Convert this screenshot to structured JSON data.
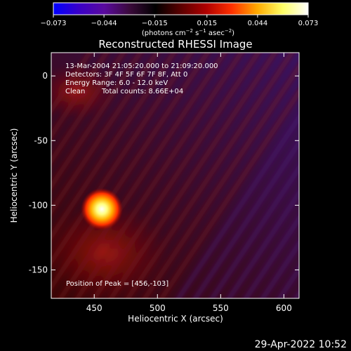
{
  "colorbar": {
    "ticks": [
      "−0.073",
      "−0.044",
      "−0.015",
      "0.015",
      "0.044",
      "0.073"
    ],
    "tick_values": [
      -0.073,
      -0.044,
      -0.015,
      0.015,
      0.044,
      0.073
    ],
    "range": [
      -0.073,
      0.073
    ],
    "units_main": "(photons cm",
    "units_exp1": "−2",
    "units_mid": " s",
    "units_exp2": "−1",
    "units_end": " asec",
    "units_exp3": "−2",
    "units_close": ")",
    "colors": [
      "#0000ff",
      "#3a00c8",
      "#5a0a9e",
      "#3a0a3a",
      "#000000",
      "#5a0000",
      "#b00000",
      "#ff3000",
      "#ffaa00",
      "#ffff66",
      "#ffffff"
    ]
  },
  "chart_data": {
    "type": "heatmap",
    "title": "Reconstructed RHESSI Image",
    "xlabel": "Heliocentric X (arcsec)",
    "ylabel": "Heliocentric Y (arcsec)",
    "x_ticks": [
      450,
      500,
      550,
      600
    ],
    "y_ticks": [
      0,
      -50,
      -100,
      -150
    ],
    "xlim": [
      416,
      612
    ],
    "ylim": [
      -172,
      18
    ],
    "peak_position": [
      456,
      -103
    ],
    "peak_value": 0.073,
    "annotations": {
      "time": "13-Mar-2004 21:05:20.000 to 21:09:20.000",
      "detectors": "Detectors: 3F 4F 5F 6F 7F 8F, Att 0",
      "energy": "Energy Range: 6.0 - 12.0 keV",
      "clean_label": "Clean",
      "counts": "Total counts: 8.66E+04",
      "peak": "Position of Peak = [456,-103]"
    }
  },
  "footer": {
    "timestamp": "29-Apr-2022 10:52"
  }
}
